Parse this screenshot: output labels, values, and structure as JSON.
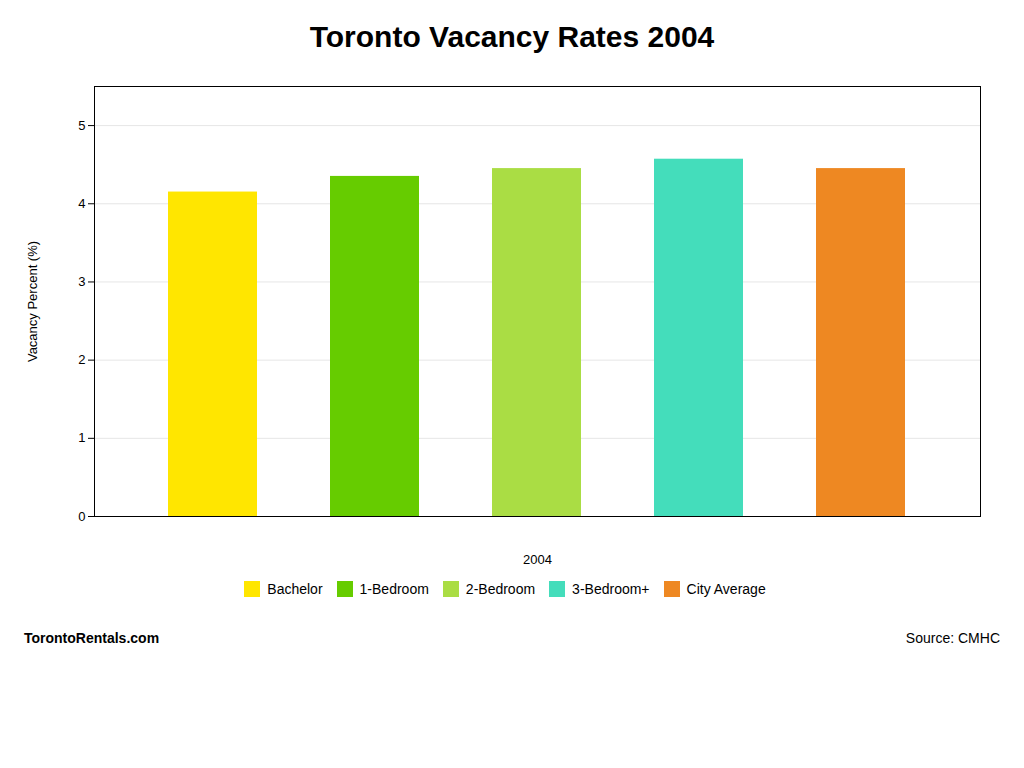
{
  "chart_data": {
    "type": "bar",
    "title": "Toronto Vacancy Rates 2004",
    "categories": [
      "Bachelor",
      "1-Bedroom",
      "2-Bedroom",
      "3-Bedroom+",
      "City Average"
    ],
    "values": [
      4.15,
      4.35,
      4.45,
      4.57,
      4.45
    ],
    "colors": [
      "#FFE600",
      "#66CC00",
      "#AADD44",
      "#44DDBB",
      "#EE8822"
    ],
    "xlabel": "2004",
    "ylabel": "Vacancy Percent (%)",
    "ylim": [
      0,
      5.5
    ],
    "yticks": [
      0,
      1,
      2,
      3,
      4,
      5
    ],
    "grid": true,
    "legend": "bottom",
    "tick_labels": "y",
    "annotations": [
      "TorontoRentals.com",
      "Source: CMHC"
    ]
  }
}
